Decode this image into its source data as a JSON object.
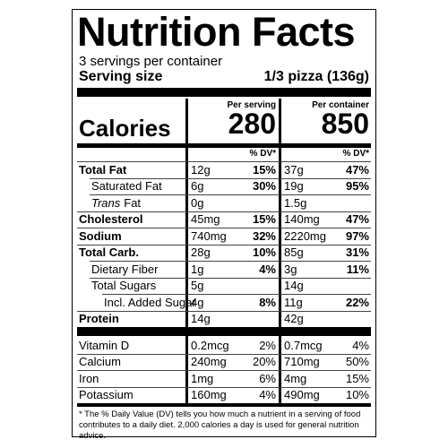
{
  "title": "Nutrition Facts",
  "servings": "3 servings per container",
  "serving_size": {
    "label": "Serving size",
    "value": "1/3 pizza (136g)"
  },
  "calories_label": "Calories",
  "columns": [
    {
      "heading": "Per serving",
      "calories": "280",
      "dv_header": "% DV*"
    },
    {
      "heading": "Per container",
      "calories": "850",
      "dv_header": "% DV*"
    }
  ],
  "rows": [
    {
      "name": "Total Fat",
      "values": [
        {
          "amount": "12g",
          "dv": "15%"
        },
        {
          "amount": "37g",
          "dv": "47%"
        }
      ]
    },
    {
      "name": "Saturated Fat",
      "values": [
        {
          "amount": "6g",
          "dv": "30%"
        },
        {
          "amount": "19g",
          "dv": "95%"
        }
      ]
    },
    {
      "name_italic": "Trans",
      "name": "Fat",
      "values": [
        {
          "amount": "0g"
        },
        {
          "amount": "1.5g"
        }
      ]
    },
    {
      "name": "Cholesterol",
      "values": [
        {
          "amount": "45mg",
          "dv": "15%"
        },
        {
          "amount": "140mg",
          "dv": "47%"
        }
      ]
    },
    {
      "name": "Sodium",
      "values": [
        {
          "amount": "740mg",
          "dv": "32%"
        },
        {
          "amount": "2220mg",
          "dv": "97%"
        }
      ]
    },
    {
      "name": "Total Carb.",
      "values": [
        {
          "amount": "28g",
          "dv": "10%"
        },
        {
          "amount": "85g",
          "dv": "31%"
        }
      ]
    },
    {
      "name": "Dietary Fiber",
      "values": [
        {
          "amount": "1g",
          "dv": "4%"
        },
        {
          "amount": "3g",
          "dv": "11%"
        }
      ]
    },
    {
      "name": "Total Sugars",
      "values": [
        {
          "amount": "5g"
        },
        {
          "amount": "14g"
        }
      ]
    },
    {
      "name": "Incl. Added Sugar",
      "values": [
        {
          "amount": "4g",
          "dv": "8%"
        },
        {
          "amount": "11g",
          "dv": "22%"
        }
      ]
    },
    {
      "name": "Protein",
      "values": [
        {
          "amount": "14g"
        },
        {
          "amount": "42g"
        }
      ]
    }
  ],
  "micronutrients": [
    {
      "name": "Vitamin D",
      "values": [
        {
          "amount": "0.2mcg",
          "dv": "2%"
        },
        {
          "amount": "0.7mcg",
          "dv": "4%"
        }
      ]
    },
    {
      "name": "Calcium",
      "values": [
        {
          "amount": "240mg",
          "dv": "20%"
        },
        {
          "amount": "710mg",
          "dv": "50%"
        }
      ]
    },
    {
      "name": "Iron",
      "values": [
        {
          "amount": "1mg",
          "dv": "6%"
        },
        {
          "amount": "4mg",
          "dv": "15%"
        }
      ]
    },
    {
      "name": "Potassium",
      "values": [
        {
          "amount": "160mg",
          "dv": "4%"
        },
        {
          "amount": "490mg",
          "dv": "10%"
        }
      ]
    }
  ],
  "footnote": "* The % Daily Value (DV) tells you how much a nutrient in a serving of food contributes to a daily diet. 2,000 calories a day is used for general nutrition advice."
}
